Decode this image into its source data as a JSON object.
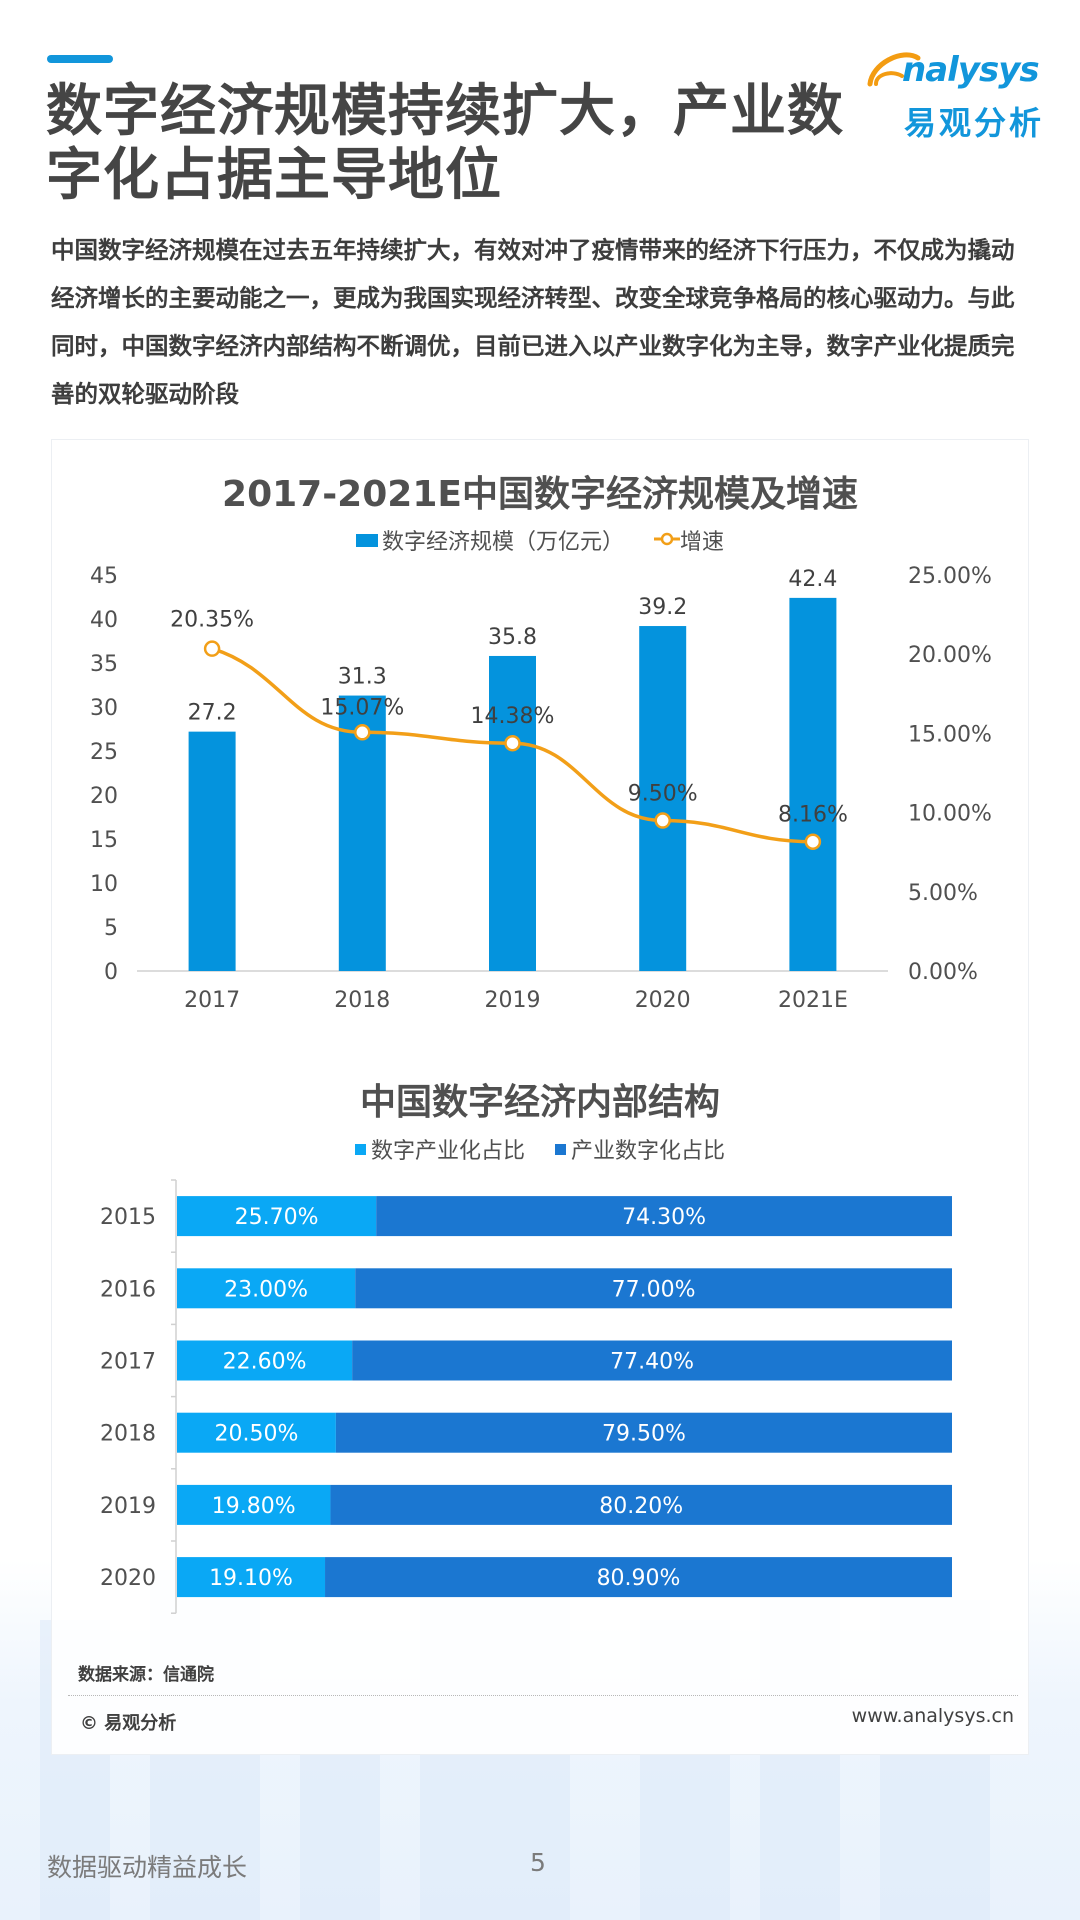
{
  "header": {
    "title_line1": "数字经济规模持续扩大，产业数",
    "title_line2": "字化占据主导地位",
    "logo_en": "nalysys",
    "logo_cn": "易观分析",
    "accent_color": "#1296db",
    "logo_orange": "#f39c12"
  },
  "intro": "中国数字经济规模在过去五年持续扩大，有效对冲了疫情带来的经济下行压力，不仅成为撬动经济增长的主要动能之一，更成为我国实现经济转型、改变全球竞争格局的核心驱动力。与此同时，中国数字经济内部结构不断调优，目前已进入以产业数字化为主导，数字产业化提质完善的双轮驱动阶段",
  "chart_data": [
    {
      "type": "bar",
      "title": "2017-2021E中国数字经济规模及增速",
      "categories": [
        "2017",
        "2018",
        "2019",
        "2020",
        "2021E"
      ],
      "series": [
        {
          "name": "数字经济规模（万亿元）",
          "type": "bar",
          "axis": "left",
          "color": "#0493dd",
          "values": [
            27.2,
            31.3,
            35.8,
            39.2,
            42.4
          ],
          "labels": [
            "27.2",
            "31.3",
            "35.8",
            "39.2",
            "42.4"
          ]
        },
        {
          "name": "增速",
          "type": "line",
          "axis": "right",
          "color": "#f29f18",
          "values": [
            20.35,
            15.07,
            14.38,
            9.5,
            8.16
          ],
          "labels": [
            "20.35%",
            "15.07%",
            "14.38%",
            "9.50%",
            "8.16%"
          ]
        }
      ],
      "ylim": [
        0,
        45
      ],
      "yticks": [
        "0",
        "5",
        "10",
        "15",
        "20",
        "25",
        "30",
        "35",
        "40",
        "45"
      ],
      "y2lim": [
        0,
        25
      ],
      "y2ticks": [
        "0.00%",
        "5.00%",
        "10.00%",
        "15.00%",
        "20.00%",
        "25.00%"
      ],
      "legend": "top",
      "grid": false
    },
    {
      "type": "bar",
      "orientation": "horizontal-stacked-100",
      "title": "中国数字经济内部结构",
      "categories": [
        "2015",
        "2016",
        "2017",
        "2018",
        "2019",
        "2020"
      ],
      "series": [
        {
          "name": "数字产业化占比",
          "color": "#0aa8f5",
          "values": [
            25.7,
            23.0,
            22.6,
            20.5,
            19.8,
            19.1
          ],
          "labels": [
            "25.70%",
            "23.00%",
            "22.60%",
            "20.50%",
            "19.80%",
            "19.10%"
          ]
        },
        {
          "name": "产业数字化占比",
          "color": "#1b77d1",
          "values": [
            74.3,
            77.0,
            77.4,
            79.5,
            80.2,
            80.9
          ],
          "labels": [
            "74.30%",
            "77.00%",
            "77.40%",
            "79.50%",
            "80.20%",
            "80.90%"
          ]
        }
      ],
      "xlim": [
        0,
        100
      ],
      "legend": "top",
      "grid": false
    }
  ],
  "source": "数据来源：信通院",
  "copyright": "© 易观分析",
  "website": "www.analysys.cn",
  "footer": {
    "slogan": "数据驱动精益成长",
    "page_number": "5"
  }
}
